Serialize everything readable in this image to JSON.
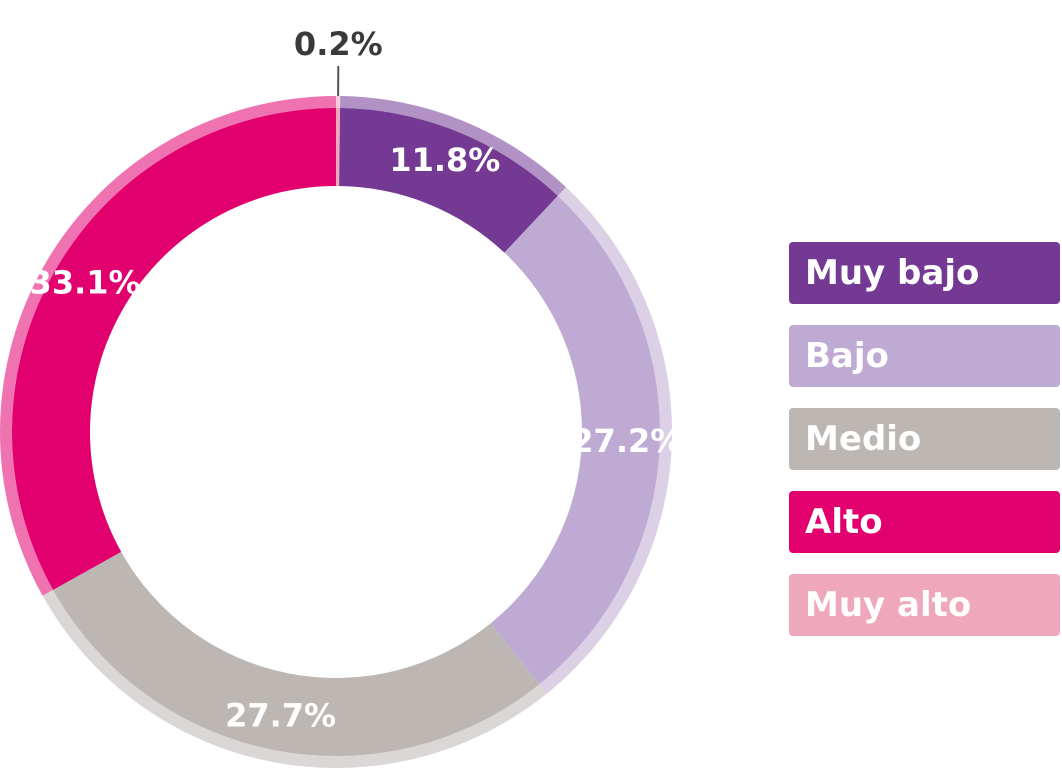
{
  "chart_data": {
    "type": "pie",
    "donut": true,
    "categories": [
      "Muy bajo",
      "Bajo",
      "Medio",
      "Alto",
      "Muy alto"
    ],
    "values": [
      11.8,
      27.2,
      27.7,
      33.1,
      0.2
    ],
    "labels": [
      "11.8%",
      "27.2%",
      "27.7%",
      "33.1%",
      "0.2%"
    ],
    "colors": [
      "#733993",
      "#bfaad4",
      "#bdb7b4",
      "#e2006f",
      "#efa8bb"
    ],
    "legend_position": "right"
  }
}
